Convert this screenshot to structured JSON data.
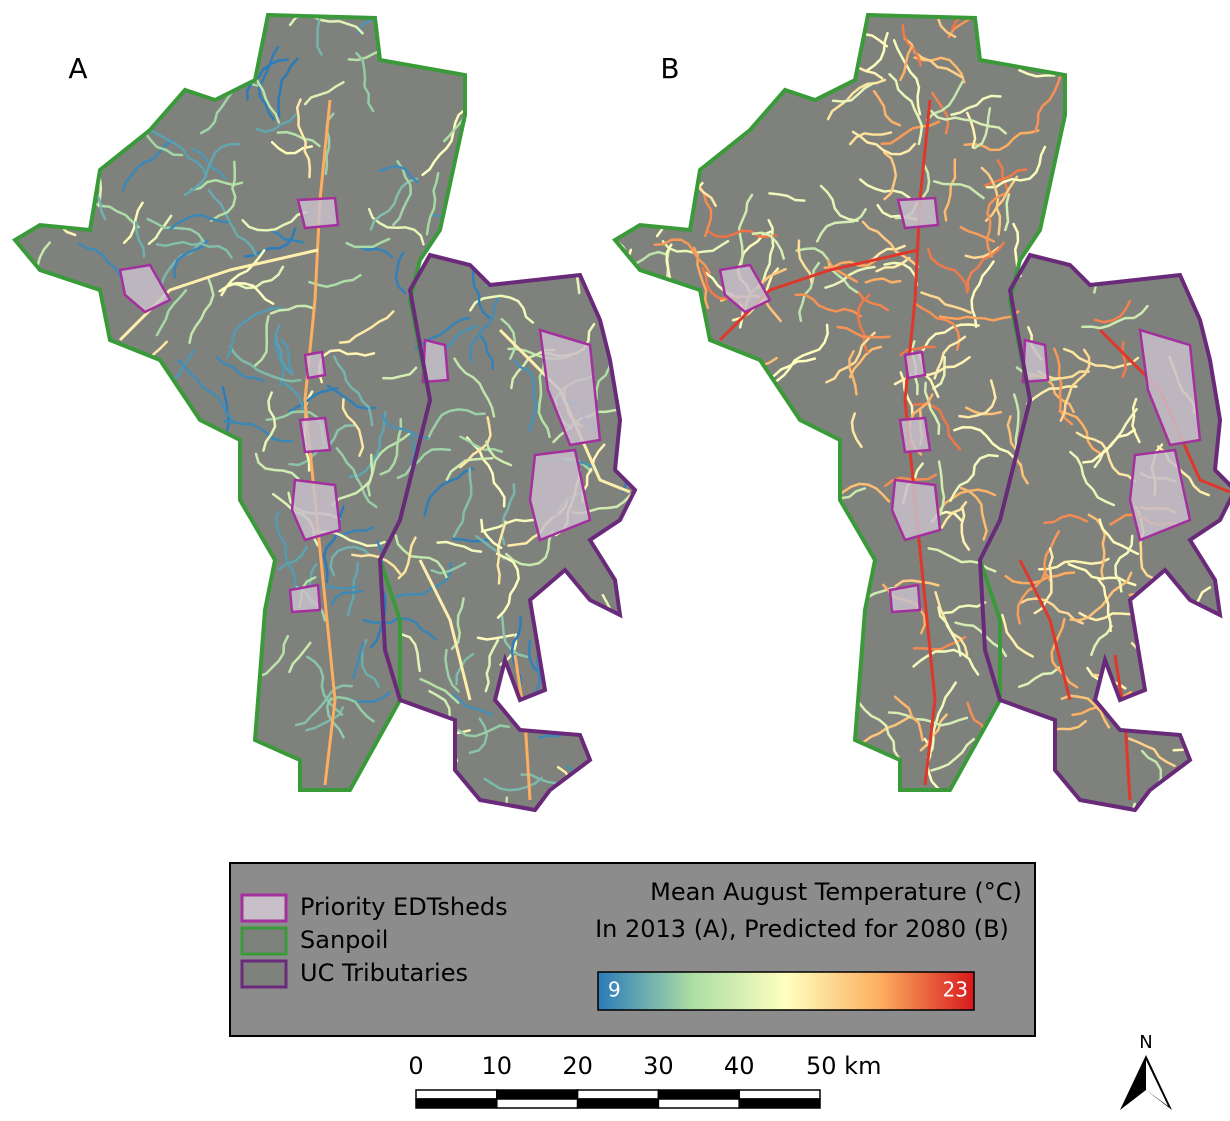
{
  "panels": [
    {
      "label": "A"
    },
    {
      "label": "B"
    }
  ],
  "legend": {
    "items": [
      {
        "label": "Priority EDTsheds",
        "fill": "#c9bfc9",
        "stroke": "#a3309e"
      },
      {
        "label": "Sanpoil",
        "fill": "#7f817d",
        "stroke": "#3a9a3a"
      },
      {
        "label": "UC Tributaries",
        "fill": "#7f817d",
        "stroke": "#6a2a7a"
      }
    ],
    "colorbar": {
      "title_lines": [
        "Mean August Temperature (°C)",
        "In 2013 (A), Predicted for 2080 (B)"
      ],
      "min": 9,
      "max": 23,
      "colors": [
        "#2b7bb9",
        "#abdda4",
        "#ffffbf",
        "#fdae61",
        "#d7191c"
      ]
    }
  },
  "scale_bar": {
    "ticks": [
      0,
      10,
      20,
      30,
      40,
      {
        "value": 50,
        "label": "50 km"
      }
    ]
  },
  "north_arrow": {
    "label": "N"
  }
}
